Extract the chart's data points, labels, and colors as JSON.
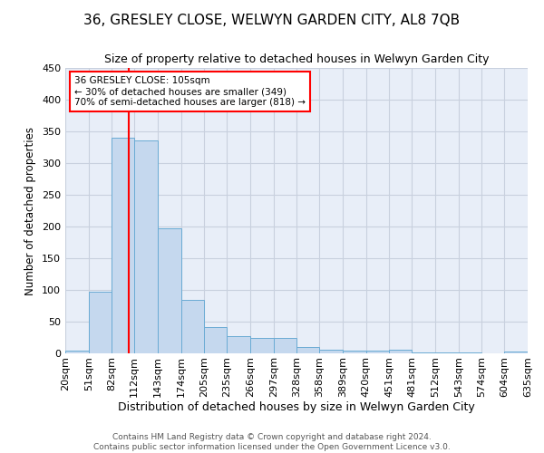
{
  "title": "36, GRESLEY CLOSE, WELWYN GARDEN CITY, AL8 7QB",
  "subtitle": "Size of property relative to detached houses in Welwyn Garden City",
  "xlabel": "Distribution of detached houses by size in Welwyn Garden City",
  "ylabel": "Number of detached properties",
  "footer_line1": "Contains HM Land Registry data © Crown copyright and database right 2024.",
  "footer_line2": "Contains public sector information licensed under the Open Government Licence v3.0.",
  "bar_values": [
    5,
    97,
    340,
    336,
    197,
    85,
    42,
    27,
    25,
    24,
    10,
    6,
    4,
    4,
    6,
    1,
    1,
    1,
    0,
    3
  ],
  "bin_edges": [
    20,
    51,
    82,
    112,
    143,
    174,
    205,
    235,
    266,
    297,
    328,
    358,
    389,
    420,
    451,
    481,
    512,
    543,
    574,
    604,
    635
  ],
  "bar_color": "#c5d8ee",
  "bar_edge_color": "#6aabd4",
  "vline_x": 105,
  "vline_color": "red",
  "annotation_line1": "36 GRESLEY CLOSE: 105sqm",
  "annotation_line2": "← 30% of detached houses are smaller (349)",
  "annotation_line3": "70% of semi-detached houses are larger (818) →",
  "annotation_box_color": "white",
  "annotation_box_edge": "red",
  "ylim": [
    0,
    450
  ],
  "yticks": [
    0,
    50,
    100,
    150,
    200,
    250,
    300,
    350,
    400,
    450
  ],
  "grid_color": "#c8d0de",
  "background_color": "#e8eef8",
  "title_fontsize": 11,
  "subtitle_fontsize": 9,
  "tick_label_fontsize": 8,
  "ylabel_fontsize": 8.5,
  "xlabel_fontsize": 9,
  "annotation_fontsize": 7.5,
  "footer_fontsize": 6.5
}
